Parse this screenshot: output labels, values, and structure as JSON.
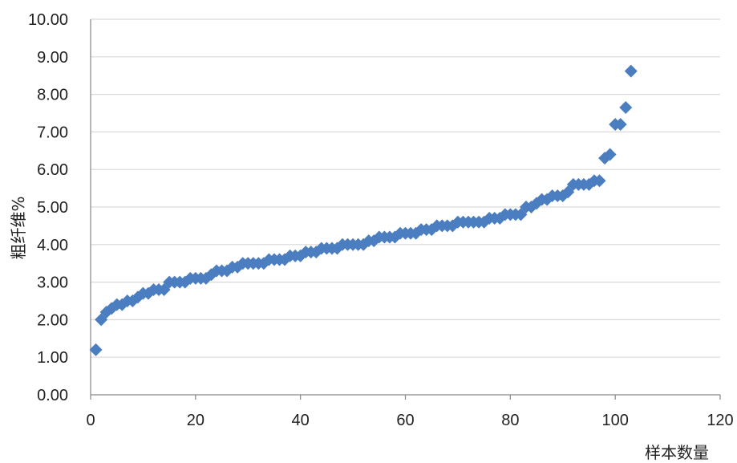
{
  "chart_data": {
    "type": "scatter",
    "xlabel": "样本数量",
    "ylabel": "粗纤维%",
    "xlim": [
      0,
      120
    ],
    "ylim": [
      0,
      10
    ],
    "x_ticks": [
      "0",
      "20",
      "40",
      "60",
      "80",
      "100",
      "120"
    ],
    "y_ticks": [
      "0.00",
      "1.00",
      "2.00",
      "3.00",
      "4.00",
      "5.00",
      "6.00",
      "7.00",
      "8.00",
      "9.00",
      "10.00"
    ],
    "grid": "horizontal",
    "legend": "none",
    "marker": "diamond",
    "series": [
      {
        "color": "#4A7EC0",
        "x": [
          1,
          2,
          3,
          4,
          5,
          6,
          7,
          8,
          9,
          10,
          11,
          12,
          13,
          14,
          15,
          16,
          17,
          18,
          19,
          20,
          21,
          22,
          23,
          24,
          25,
          26,
          27,
          28,
          29,
          30,
          31,
          32,
          33,
          34,
          35,
          36,
          37,
          38,
          39,
          40,
          41,
          42,
          43,
          44,
          45,
          46,
          47,
          48,
          49,
          50,
          51,
          52,
          53,
          54,
          55,
          56,
          57,
          58,
          59,
          60,
          61,
          62,
          63,
          64,
          65,
          66,
          67,
          68,
          69,
          70,
          71,
          72,
          73,
          74,
          75,
          76,
          77,
          78,
          79,
          80,
          81,
          82,
          83,
          84,
          85,
          86,
          87,
          88,
          89,
          90,
          91,
          92,
          93,
          94,
          95,
          96,
          97,
          98,
          99,
          100,
          101,
          102,
          103
        ],
        "y": [
          1.2,
          2.0,
          2.2,
          2.3,
          2.4,
          2.4,
          2.5,
          2.5,
          2.6,
          2.7,
          2.7,
          2.8,
          2.8,
          2.8,
          3.0,
          3.0,
          3.0,
          3.0,
          3.1,
          3.1,
          3.1,
          3.1,
          3.2,
          3.3,
          3.3,
          3.3,
          3.4,
          3.4,
          3.5,
          3.5,
          3.5,
          3.5,
          3.5,
          3.6,
          3.6,
          3.6,
          3.6,
          3.7,
          3.7,
          3.7,
          3.8,
          3.8,
          3.8,
          3.9,
          3.9,
          3.9,
          3.9,
          4.0,
          4.0,
          4.0,
          4.0,
          4.0,
          4.1,
          4.1,
          4.2,
          4.2,
          4.2,
          4.2,
          4.3,
          4.3,
          4.3,
          4.3,
          4.4,
          4.4,
          4.4,
          4.5,
          4.5,
          4.5,
          4.5,
          4.6,
          4.6,
          4.6,
          4.6,
          4.6,
          4.6,
          4.7,
          4.7,
          4.7,
          4.8,
          4.8,
          4.8,
          4.8,
          5.0,
          5.0,
          5.1,
          5.2,
          5.2,
          5.3,
          5.3,
          5.3,
          5.4,
          5.6,
          5.6,
          5.6,
          5.6,
          5.7,
          5.7,
          6.3,
          6.4,
          7.2,
          7.2,
          7.65,
          8.62
        ]
      }
    ]
  }
}
